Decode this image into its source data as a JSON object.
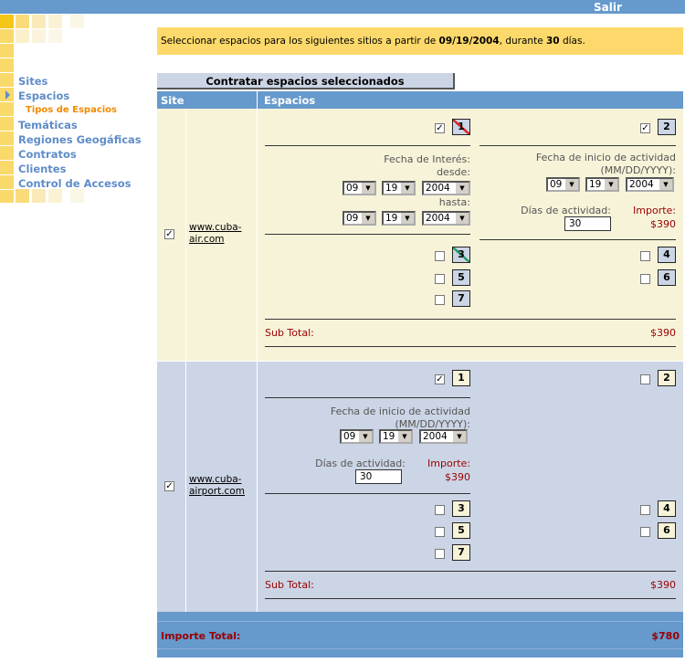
{
  "header": {
    "logout": "Salir"
  },
  "notice": {
    "prefix": "Seleccionar espacios para los siguientes sitios a partir de ",
    "date": "09/19/2004",
    "middle": ", durante ",
    "days": "30",
    "suffix": " días."
  },
  "sidebar": {
    "items": [
      {
        "label": "Sites"
      },
      {
        "label": "Espacios",
        "active": true
      },
      {
        "label": "Tipos de Espacios",
        "sub": true
      },
      {
        "label": "Temáticas"
      },
      {
        "label": "Regiones Geogáficas"
      },
      {
        "label": "Contratos"
      },
      {
        "label": "Clientes"
      },
      {
        "label": "Control de Accesos"
      }
    ]
  },
  "toolbar": {
    "contract_label": "Contratar espacios seleccionados"
  },
  "table": {
    "headers": {
      "site": "Site",
      "spaces": "Espacios"
    },
    "sites": [
      {
        "url1": "www.cuba-",
        "url2": "air.com",
        "checked": true,
        "spaces": [
          {
            "n": "1",
            "checked": true,
            "mark": "red-slash"
          },
          {
            "n": "2",
            "checked": true
          },
          {
            "n": "3",
            "checked": false,
            "mark": "green-slash"
          },
          {
            "n": "4",
            "checked": false
          },
          {
            "n": "5",
            "checked": false
          },
          {
            "n": "6",
            "checked": false
          },
          {
            "n": "7",
            "checked": false
          }
        ],
        "interest_label": "Fecha de Interés:",
        "from_label": "desde:",
        "to_label": "hasta:",
        "from": {
          "month": "09",
          "day": "19",
          "year": "2004"
        },
        "to": {
          "month": "09",
          "day": "19",
          "year": "2004"
        },
        "start_label": "Fecha de inicio de actividad",
        "format_label": "(MM/DD/YYYY):",
        "start": {
          "month": "09",
          "day": "19",
          "year": "2004"
        },
        "days_label": "Días de actividad:",
        "days": "30",
        "amount_label": "Importe:",
        "amount": "$390",
        "subtotal_label": "Sub Total:",
        "subtotal": "$390"
      },
      {
        "url1": "www.cuba-",
        "url2": "airport.com",
        "checked": true,
        "spaces": [
          {
            "n": "1",
            "checked": true
          },
          {
            "n": "2",
            "checked": false
          },
          {
            "n": "3",
            "checked": false
          },
          {
            "n": "4",
            "checked": false
          },
          {
            "n": "5",
            "checked": false
          },
          {
            "n": "6",
            "checked": false
          },
          {
            "n": "7",
            "checked": false
          }
        ],
        "start_label": "Fecha de inicio de actividad",
        "format_label": "(MM/DD/YYYY):",
        "start": {
          "month": "09",
          "day": "19",
          "year": "2004"
        },
        "days_label": "Días de actividad:",
        "days": "30",
        "amount_label": "Importe:",
        "amount": "$390",
        "subtotal_label": "Sub Total:",
        "subtotal": "$390"
      }
    ]
  },
  "total": {
    "label": "Importe Total:",
    "value": "$780"
  },
  "colors": {
    "bar": "#6699cc",
    "notice": "#fcd96a",
    "row1": "#f7f3d9",
    "row2": "#ccd5e5",
    "accent": "#f08a00",
    "money": "#990000"
  }
}
